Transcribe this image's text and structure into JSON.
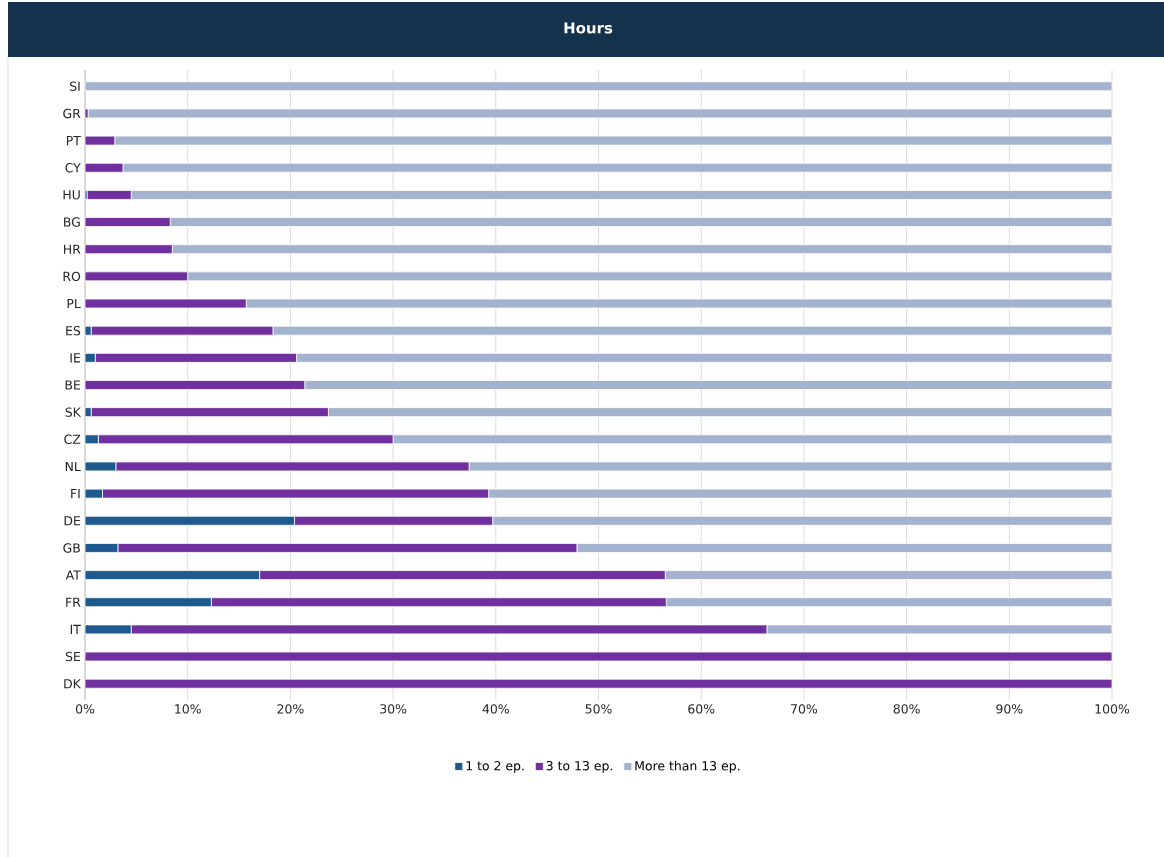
{
  "chart_data": {
    "type": "bar",
    "orientation": "horizontal",
    "stacked": true,
    "title": "Hours",
    "categories": [
      "SI",
      "GR",
      "PT",
      "CY",
      "HU",
      "BG",
      "HR",
      "RO",
      "PL",
      "ES",
      "IE",
      "BE",
      "SK",
      "CZ",
      "NL",
      "FI",
      "DE",
      "GB",
      "AT",
      "FR",
      "IT",
      "SE",
      "DK"
    ],
    "series": [
      {
        "name": "1 to 2 ep.",
        "color": "#1f5a8f",
        "values": [
          0,
          0,
          0,
          0,
          0.2,
          0,
          0,
          0,
          0,
          0.6,
          1,
          0,
          0.6,
          1.3,
          3,
          1.7,
          20.4,
          3.2,
          17,
          12.3,
          4.5,
          0,
          0
        ]
      },
      {
        "name": "3 to 13 ep.",
        "color": "#7030a0",
        "values": [
          0,
          0.3,
          2.9,
          3.7,
          4.3,
          8.3,
          8.5,
          10,
          15.7,
          17.7,
          19.6,
          21.4,
          23.1,
          28.7,
          34.4,
          37.6,
          19.3,
          44.7,
          39.5,
          44.3,
          61.9,
          100,
          100
        ]
      },
      {
        "name": "More than 13 ep.",
        "color": "#a3b2cf",
        "values": [
          100,
          99.7,
          97.1,
          96.3,
          95.5,
          91.7,
          91.5,
          90,
          84.3,
          81.7,
          79.4,
          78.6,
          76.3,
          70,
          62.6,
          60.7,
          60.3,
          52.1,
          43.5,
          43.4,
          33.6,
          0,
          0
        ]
      }
    ],
    "xlim": [
      0,
      100
    ],
    "xticks": [
      {
        "value": 0,
        "label": "0%"
      },
      {
        "value": 10,
        "label": "10%"
      },
      {
        "value": 20,
        "label": "20%"
      },
      {
        "value": 30,
        "label": "30%"
      },
      {
        "value": 40,
        "label": "40%"
      },
      {
        "value": 50,
        "label": "50%"
      },
      {
        "value": 60,
        "label": "60%"
      },
      {
        "value": 70,
        "label": "70%"
      },
      {
        "value": 80,
        "label": "80%"
      },
      {
        "value": 90,
        "label": "90%"
      },
      {
        "value": 100,
        "label": "100%"
      }
    ],
    "grid": "x",
    "legend": "bottom"
  }
}
